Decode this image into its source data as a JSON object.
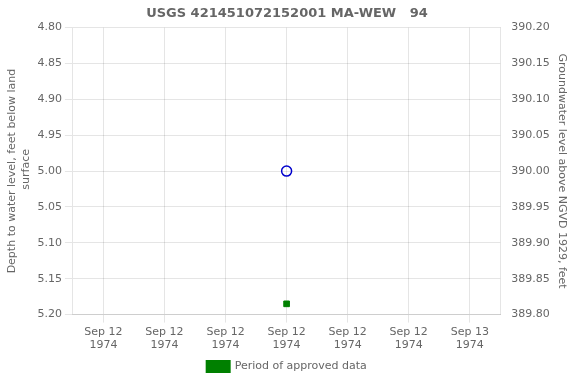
{
  "chart_data": {
    "type": "scatter",
    "title": "USGS 421451072152001 MA-WEW   94",
    "ylabel": "Depth to water level, feet below land\n surface",
    "y2label": "Groundwater level above NGVD 1929, feet",
    "categories": [
      "Sep 12\n1974",
      "Sep 12\n1974",
      "Sep 12\n1974",
      "Sep 12\n1974",
      "Sep 12\n1974",
      "Sep 12\n1974",
      "Sep 13\n1974"
    ],
    "series": [
      {
        "color": "#0000cc",
        "marker": "circle_open",
        "values": [
          null,
          null,
          null,
          5.0,
          null,
          null,
          null
        ]
      },
      {
        "name": "Period of approved data",
        "color": "#008000",
        "marker": "square",
        "values": [
          null,
          null,
          null,
          5.185,
          null,
          null,
          null
        ]
      }
    ],
    "ylim": [
      5.2,
      4.8
    ],
    "yticks": [
      {
        "value": 4.8,
        "label": "4.80"
      },
      4.85,
      {
        "value": 4.9,
        "label": "4.90"
      },
      4.95,
      {
        "value": 5.0,
        "label": "5.00"
      },
      5.05,
      {
        "value": 5.1,
        "label": "5.10"
      },
      5.15,
      {
        "value": 5.2,
        "label": "5.20"
      }
    ],
    "y2lim": [
      389.8,
      390.2
    ],
    "y2ticks": [
      {
        "value": 389.8,
        "label": "389.80"
      },
      389.85,
      {
        "value": 389.9,
        "label": "389.90"
      },
      389.95,
      {
        "value": 390.0,
        "label": "390.00"
      },
      390.05,
      {
        "value": 390.1,
        "label": "390.10"
      },
      390.15,
      {
        "value": 390.2,
        "label": "390.20"
      }
    ],
    "grid": true,
    "legend": "bottom"
  }
}
